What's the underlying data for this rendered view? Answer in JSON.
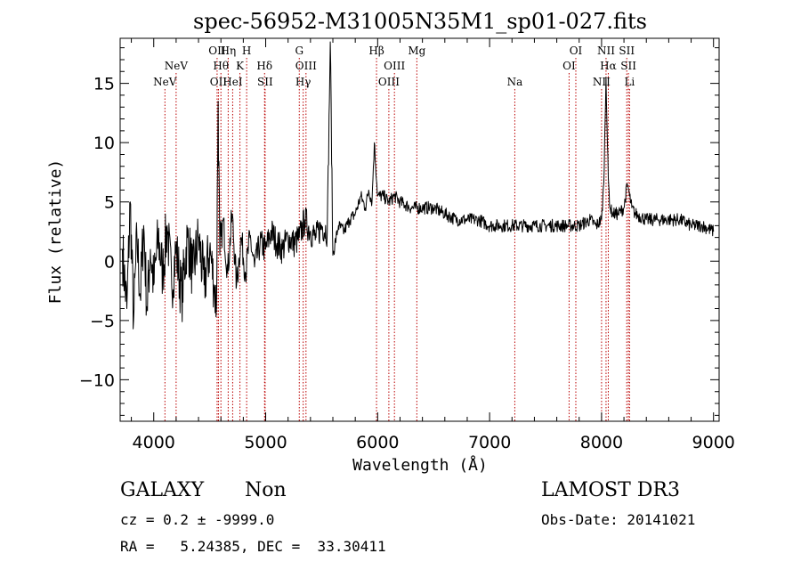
{
  "chart_data": {
    "type": "line",
    "title": "spec-56952-M31005N35M1_sp01-027.fits",
    "xlabel": "Wavelength (Å)",
    "ylabel": "Flux (relative)",
    "xlim": [
      3700,
      9050
    ],
    "ylim": [
      -13.5,
      18.8
    ],
    "x_ticks": [
      4000,
      5000,
      6000,
      7000,
      8000,
      9000
    ],
    "y_ticks": [
      -10,
      -5,
      0,
      5,
      10,
      15
    ],
    "grid": false,
    "line_color": "#000000",
    "marker_color": "#bb0000",
    "spectrum": {
      "name": "flux",
      "x": [
        3720,
        3760,
        3790,
        3820,
        3850,
        3880,
        3910,
        3940,
        3970,
        4000,
        4040,
        4080,
        4120,
        4160,
        4200,
        4250,
        4300,
        4350,
        4400,
        4450,
        4500,
        4540,
        4560,
        4575,
        4590,
        4620,
        4660,
        4700,
        4740,
        4780,
        4820,
        4860,
        4900,
        4950,
        5000,
        5050,
        5100,
        5150,
        5200,
        5250,
        5300,
        5350,
        5400,
        5450,
        5500,
        5550,
        5577,
        5600,
        5650,
        5700,
        5750,
        5800,
        5850,
        5890,
        5920,
        5950,
        5970,
        6000,
        6050,
        6100,
        6150,
        6200,
        6300,
        6400,
        6500,
        6600,
        6700,
        6800,
        6900,
        7000,
        7100,
        7200,
        7300,
        7400,
        7500,
        7600,
        7700,
        7800,
        7900,
        7950,
        8000,
        8020,
        8040,
        8050,
        8060,
        8075,
        8100,
        8150,
        8200,
        8230,
        8250,
        8270,
        8300,
        8400,
        8500,
        8600,
        8700,
        8800,
        8900,
        9000
      ],
      "y": [
        1,
        -4,
        5,
        -5,
        2,
        -3,
        3,
        -4,
        1,
        -2,
        2,
        -1,
        3,
        -2,
        1,
        -3,
        2,
        -1,
        2,
        -2,
        1,
        -2,
        -4,
        13.5,
        0.5,
        3.5,
        -1,
        4,
        -2,
        2,
        -1,
        2,
        -0.5,
        1.5,
        1,
        2.5,
        1.5,
        1,
        2,
        1.5,
        2,
        3.5,
        2.5,
        2,
        3,
        2.5,
        18.5,
        0.5,
        3,
        2.5,
        3.5,
        4,
        5.5,
        4.5,
        6,
        5,
        10,
        5.5,
        5.5,
        5,
        5.5,
        5,
        4.5,
        4.5,
        4.5,
        4,
        3.5,
        3.5,
        3.5,
        3,
        3,
        3,
        3,
        3,
        3,
        3,
        3,
        3,
        3.5,
        3,
        3.5,
        6.5,
        15.5,
        11,
        7,
        4.5,
        4,
        4,
        4.5,
        6.5,
        5.5,
        4.5,
        4,
        3.5,
        3.5,
        3.5,
        3.5,
        3,
        3,
        2.5
      ]
    },
    "lines": [
      {
        "label": "NeV",
        "wl": 4100,
        "row": 3
      },
      {
        "label": "NeV",
        "wl": 4200,
        "row": 2
      },
      {
        "label": "OII",
        "wl": 4566,
        "row": 1
      },
      {
        "label": "OII",
        "wl": 4578,
        "row": 3
      },
      {
        "label": "Hθ",
        "wl": 4600,
        "row": 2
      },
      {
        "label": "Hη",
        "wl": 4665,
        "row": 1
      },
      {
        "label": "HeI",
        "wl": 4705,
        "row": 3
      },
      {
        "label": "K",
        "wl": 4770,
        "row": 2
      },
      {
        "label": "H",
        "wl": 4830,
        "row": 1
      },
      {
        "label": "Hδ",
        "wl": 4990,
        "row": 2
      },
      {
        "label": "SII",
        "wl": 4995,
        "row": 3
      },
      {
        "label": "G",
        "wl": 5300,
        "row": 1
      },
      {
        "label": "OIII",
        "wl": 5360,
        "row": 2
      },
      {
        "label": "Hγ",
        "wl": 5335,
        "row": 3
      },
      {
        "label": "Hβ",
        "wl": 5990,
        "row": 1
      },
      {
        "label": "OIII",
        "wl": 6100,
        "row": 3
      },
      {
        "label": "OIII",
        "wl": 6150,
        "row": 2
      },
      {
        "label": "Mg",
        "wl": 6350,
        "row": 1
      },
      {
        "label": "Na",
        "wl": 7225,
        "row": 3
      },
      {
        "label": "OI",
        "wl": 7770,
        "row": 1
      },
      {
        "label": "OI",
        "wl": 7710,
        "row": 2
      },
      {
        "label": "NII",
        "wl": 8040,
        "row": 1
      },
      {
        "label": "Hα",
        "wl": 8060,
        "row": 2
      },
      {
        "label": "NII",
        "wl": 8000,
        "row": 3
      },
      {
        "label": "SII",
        "wl": 8225,
        "row": 1
      },
      {
        "label": "SII",
        "wl": 8240,
        "row": 2
      },
      {
        "label": "Li",
        "wl": 8250,
        "row": 3
      }
    ]
  },
  "info": {
    "object_class": "GALAXY",
    "subclass": "Non",
    "survey": "LAMOST DR3",
    "cz": "cz = 0.2 ± -9999.0",
    "obs_date": "Obs-Date: 20141021",
    "coords": "RA =   5.24385, DEC =  33.30411"
  }
}
